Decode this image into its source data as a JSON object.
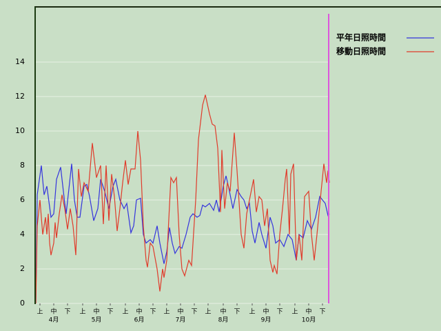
{
  "chart_data": {
    "type": "line",
    "series": [
      {
        "name": "平年日照時間",
        "color": "#3333dd",
        "x": [
          0,
          1,
          4,
          6,
          8,
          9,
          11,
          13,
          15,
          18,
          21,
          22,
          26,
          28,
          30,
          32,
          35,
          37,
          39,
          42,
          45,
          47,
          50,
          53,
          56,
          58,
          61,
          64,
          66,
          69,
          71,
          73,
          76,
          78,
          80,
          83,
          85,
          88,
          90,
          93,
          95,
          97,
          99,
          101,
          104,
          106,
          109,
          112,
          114,
          117,
          119,
          121,
          123,
          126,
          129,
          131,
          133,
          136,
          138,
          140,
          143,
          146,
          149,
          151,
          153,
          155,
          157,
          159,
          162,
          164,
          167,
          170,
          172,
          174,
          177,
          180,
          183,
          186,
          189,
          191,
          194,
          197,
          200,
          203,
          206,
          208,
          210,
          212,
          213
        ],
        "values": [
          0,
          6.3,
          8,
          6.3,
          6.8,
          6.2,
          5,
          5.2,
          7.2,
          7.9,
          5.8,
          5.2,
          8.1,
          6,
          5,
          5,
          6.8,
          6.9,
          6.2,
          4.8,
          5.5,
          7.2,
          6.5,
          5.5,
          6.8,
          7.2,
          6,
          5.5,
          5.8,
          4.1,
          4.5,
          6,
          6.1,
          4,
          3.5,
          3.7,
          3.5,
          4.5,
          3.5,
          2.3,
          3,
          4.4,
          3.5,
          2.9,
          3.3,
          3.2,
          4,
          5,
          5.2,
          5,
          5.1,
          5.7,
          5.6,
          5.8,
          5.4,
          6,
          5.3,
          6.8,
          7.4,
          6.7,
          5.5,
          6.6,
          6.2,
          6,
          5.5,
          5.8,
          4.2,
          3.5,
          4.7,
          4,
          3.2,
          5,
          4.5,
          3.5,
          3.7,
          3.3,
          4,
          3.7,
          2.5,
          4,
          3.8,
          4.8,
          4.3,
          5,
          6.2,
          6,
          5.8,
          5.1,
          5.2
        ]
      },
      {
        "name": "移動日照時間",
        "color": "#e03a2a",
        "x": [
          0,
          1,
          3,
          5,
          7,
          8,
          9,
          10,
          11,
          13,
          14,
          15,
          17,
          19,
          21,
          23,
          25,
          27,
          29,
          31,
          33,
          35,
          38,
          41,
          44,
          47,
          49,
          51,
          53,
          55,
          57,
          59,
          61,
          63,
          65,
          67,
          69,
          72,
          74,
          76,
          78,
          80,
          81,
          83,
          85,
          88,
          90,
          92,
          93,
          95,
          98,
          100,
          102,
          104,
          106,
          108,
          111,
          113,
          116,
          118,
          121,
          123,
          126,
          128,
          130,
          132,
          134,
          135,
          137,
          139,
          141,
          144,
          146,
          149,
          151,
          153,
          155,
          158,
          160,
          162,
          164,
          166,
          168,
          170,
          172,
          173,
          175,
          177,
          179,
          181,
          182,
          184,
          185,
          187,
          189,
          191,
          193,
          195,
          198,
          200,
          202,
          204,
          207,
          209,
          211,
          212,
          213
        ],
        "values": [
          0,
          4.5,
          6,
          4,
          5,
          4,
          5.2,
          3.5,
          2.8,
          3.5,
          4.7,
          3.8,
          5.2,
          6.3,
          5.5,
          4.3,
          5.5,
          4.5,
          2.8,
          7.8,
          6.2,
          7,
          6.5,
          9.3,
          7.3,
          8,
          4.6,
          8,
          4.8,
          7.5,
          6.2,
          4.2,
          5.5,
          7,
          8.3,
          6.9,
          7.8,
          7.8,
          10,
          8.3,
          4.5,
          2.5,
          2.1,
          3.5,
          3.3,
          2,
          0.7,
          2,
          1.5,
          2.5,
          7.3,
          7,
          7.3,
          4,
          2,
          1.6,
          2.5,
          2.2,
          6,
          9.5,
          11.5,
          12.1,
          11,
          10.4,
          10.3,
          9,
          5.3,
          8.9,
          5.5,
          7,
          6.5,
          9.9,
          7.7,
          4,
          3.2,
          5.2,
          6,
          7.2,
          5.3,
          6.2,
          6,
          4.5,
          5.5,
          2.5,
          1.8,
          2.2,
          1.7,
          4,
          5.5,
          7.2,
          7.8,
          4,
          7.5,
          8.1,
          2.5,
          4,
          2.5,
          6.2,
          6.5,
          4,
          2.5,
          4,
          6.5,
          8.1,
          7,
          7.7,
          7
        ]
      }
    ],
    "xlim": [
      0,
      213
    ],
    "xticks": [
      {
        "value": 3,
        "label": "上"
      },
      {
        "value": 13,
        "label": "中"
      },
      {
        "value": 23,
        "label": "下"
      },
      {
        "value": 34,
        "label": "上"
      },
      {
        "value": 44,
        "label": "中"
      },
      {
        "value": 54,
        "label": "下"
      },
      {
        "value": 65,
        "label": "上"
      },
      {
        "value": 75,
        "label": "中"
      },
      {
        "value": 85,
        "label": "下"
      },
      {
        "value": 95,
        "label": "上"
      },
      {
        "value": 105,
        "label": "中"
      },
      {
        "value": 115,
        "label": "下"
      },
      {
        "value": 125,
        "label": "上"
      },
      {
        "value": 136,
        "label": "中"
      },
      {
        "value": 146,
        "label": "下"
      },
      {
        "value": 157,
        "label": "上"
      },
      {
        "value": 167,
        "label": "中"
      },
      {
        "value": 177,
        "label": "下"
      },
      {
        "value": 188,
        "label": "上"
      },
      {
        "value": 198,
        "label": "中"
      },
      {
        "value": 208,
        "label": "下"
      }
    ],
    "month_labels": [
      {
        "value": 13,
        "label": "4月"
      },
      {
        "value": 44,
        "label": "5月"
      },
      {
        "value": 75,
        "label": "6月"
      },
      {
        "value": 105,
        "label": "7月"
      },
      {
        "value": 136,
        "label": "8月"
      },
      {
        "value": 167,
        "label": "9月"
      },
      {
        "value": 198,
        "label": "10月"
      }
    ],
    "ylim": [
      0,
      17.2
    ],
    "yticks": [
      0,
      2,
      4,
      6,
      8,
      10,
      12,
      14
    ],
    "grid": true
  }
}
